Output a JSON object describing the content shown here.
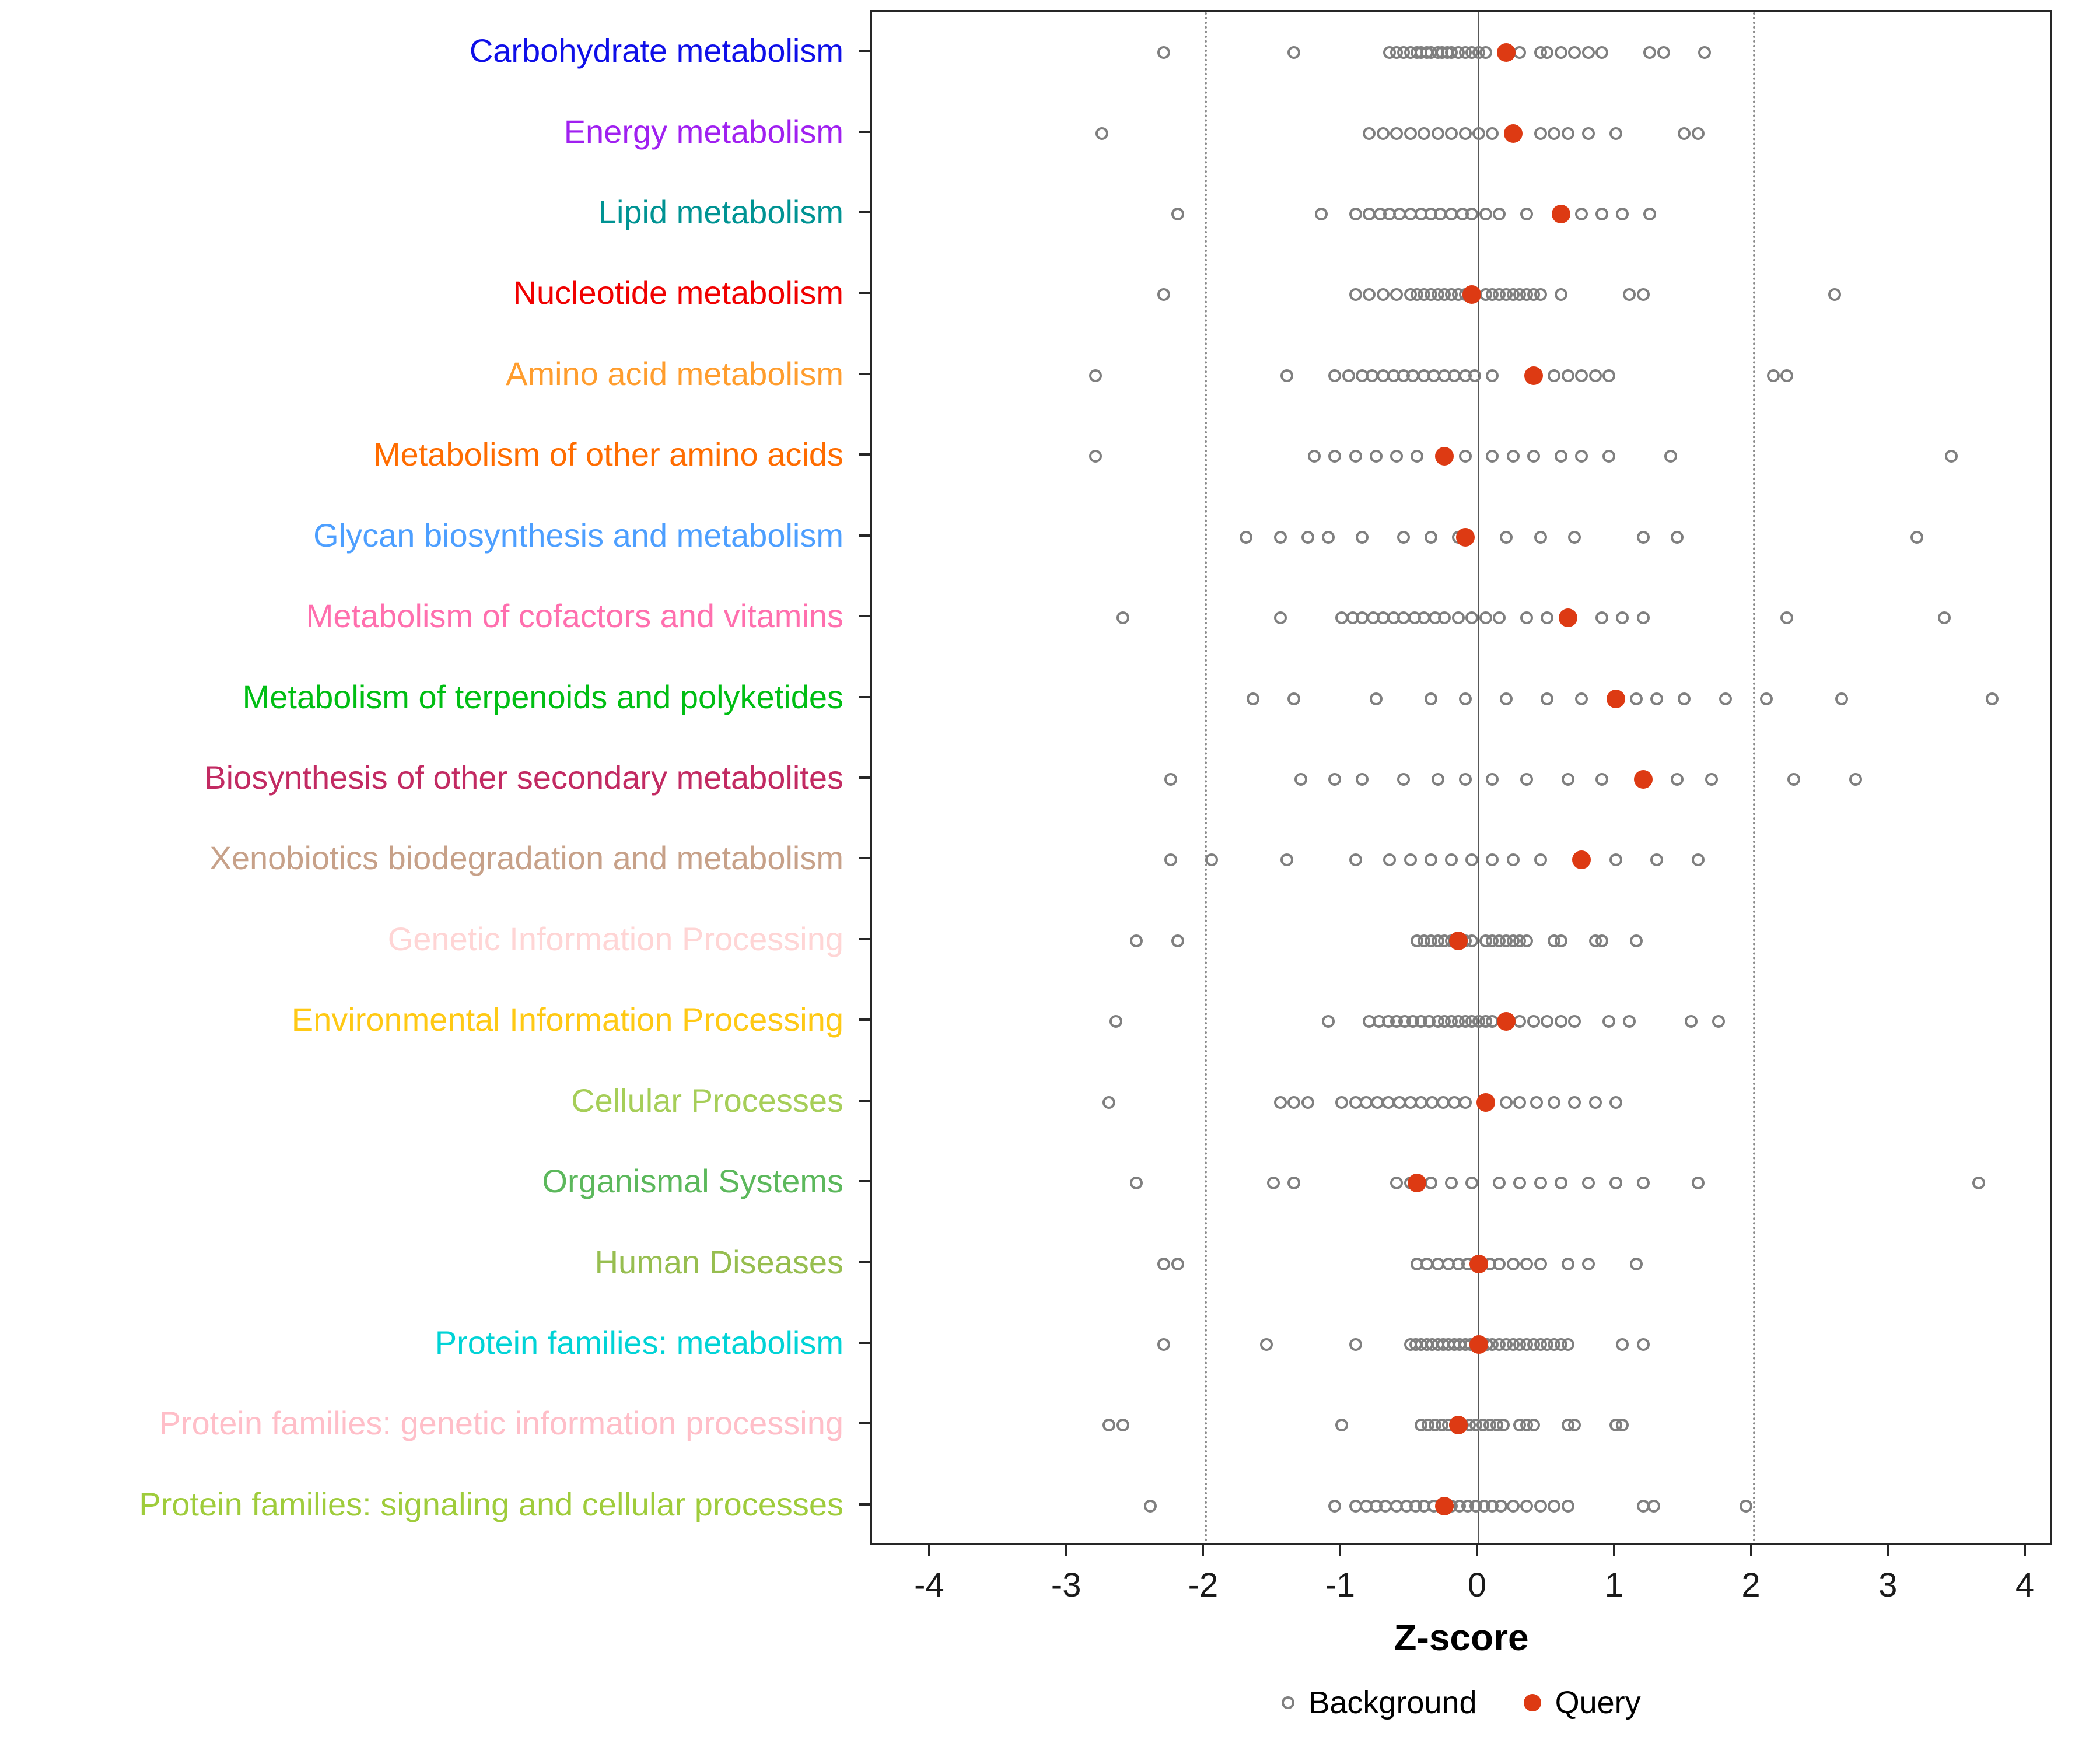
{
  "chart_data": {
    "type": "scatter",
    "title": "",
    "xlabel": "Z-score",
    "xlim": [
      -4.43,
      4.2
    ],
    "xticks": [
      -4,
      -3,
      -2,
      -1,
      0,
      1,
      2,
      3,
      4
    ],
    "grid": false,
    "legend_position": "bottom",
    "reference_lines": {
      "solid": [
        0
      ],
      "dotted": [
        -2,
        2
      ]
    },
    "legend": {
      "background_label": "Background",
      "query_label": "Query"
    },
    "colors": {
      "query_dot": "#DD3A13",
      "background_stroke": "#7F7F7F",
      "zero_line": "#595959",
      "dotted_line": "#8C8C8C"
    },
    "categories": [
      {
        "label": "Carbohydrate metabolism",
        "color": "#0F0FE8",
        "query": 0.2,
        "background": [
          -2.3,
          -1.35,
          -0.65,
          -0.6,
          -0.55,
          -0.5,
          -0.45,
          -0.42,
          -0.38,
          -0.35,
          -0.3,
          -0.27,
          -0.23,
          -0.2,
          -0.15,
          -0.1,
          -0.05,
          0,
          0.05,
          0.3,
          0.45,
          0.5,
          0.6,
          0.7,
          0.8,
          0.9,
          1.25,
          1.35,
          1.65
        ]
      },
      {
        "label": "Energy metabolism",
        "color": "#A020F0",
        "query": 0.25,
        "background": [
          -2.75,
          -0.8,
          -0.7,
          -0.6,
          -0.5,
          -0.4,
          -0.3,
          -0.2,
          -0.1,
          0,
          0.1,
          0.45,
          0.55,
          0.65,
          0.8,
          1.0,
          1.5,
          1.6
        ]
      },
      {
        "label": "Lipid metabolism",
        "color": "#009393",
        "query": 0.6,
        "background": [
          -2.2,
          -1.15,
          -0.9,
          -0.8,
          -0.72,
          -0.65,
          -0.58,
          -0.5,
          -0.42,
          -0.35,
          -0.28,
          -0.2,
          -0.12,
          -0.05,
          0.05,
          0.15,
          0.35,
          0.75,
          0.9,
          1.05,
          1.25
        ]
      },
      {
        "label": "Nucleotide metabolism",
        "color": "#F00000",
        "query": -0.05,
        "background": [
          -2.3,
          -0.9,
          -0.8,
          -0.7,
          -0.6,
          -0.5,
          -0.45,
          -0.4,
          -0.35,
          -0.3,
          -0.25,
          -0.2,
          -0.15,
          -0.1,
          0.05,
          0.1,
          0.15,
          0.2,
          0.25,
          0.3,
          0.35,
          0.4,
          0.45,
          0.6,
          1.1,
          1.2,
          2.6
        ]
      },
      {
        "label": "Amino acid metabolism",
        "color": "#FF9D2E",
        "query": 0.4,
        "background": [
          -2.8,
          -1.4,
          -1.05,
          -0.95,
          -0.85,
          -0.78,
          -0.7,
          -0.62,
          -0.55,
          -0.48,
          -0.4,
          -0.33,
          -0.25,
          -0.18,
          -0.1,
          -0.03,
          0.1,
          0.55,
          0.65,
          0.75,
          0.85,
          0.95,
          2.15,
          2.25
        ]
      },
      {
        "label": "Metabolism of other amino acids",
        "color": "#FF6C00",
        "query": -0.25,
        "background": [
          -2.8,
          -1.2,
          -1.05,
          -0.9,
          -0.75,
          -0.6,
          -0.45,
          -0.1,
          0.1,
          0.25,
          0.4,
          0.6,
          0.75,
          0.95,
          1.4,
          3.45
        ]
      },
      {
        "label": "Glycan biosynthesis and metabolism",
        "color": "#4D9FFF",
        "query": -0.1,
        "background": [
          -1.7,
          -1.45,
          -1.25,
          -1.1,
          -0.85,
          -0.55,
          -0.35,
          -0.15,
          0.2,
          0.45,
          0.7,
          1.2,
          1.45,
          3.2
        ]
      },
      {
        "label": "Metabolism of cofactors and vitamins",
        "color": "#FF6FAE",
        "query": 0.65,
        "background": [
          -2.6,
          -1.45,
          -1.0,
          -0.92,
          -0.85,
          -0.77,
          -0.7,
          -0.62,
          -0.55,
          -0.47,
          -0.4,
          -0.32,
          -0.25,
          -0.15,
          -0.05,
          0.05,
          0.15,
          0.35,
          0.5,
          0.9,
          1.05,
          1.2,
          2.25,
          3.4
        ]
      },
      {
        "label": "Metabolism of terpenoids and polyketides",
        "color": "#00BE13",
        "query": 1.0,
        "background": [
          -1.65,
          -1.35,
          -0.75,
          -0.35,
          -0.1,
          0.2,
          0.5,
          0.75,
          1.15,
          1.3,
          1.5,
          1.8,
          2.1,
          2.65,
          3.75
        ]
      },
      {
        "label": "Biosynthesis of other secondary metabolites",
        "color": "#C22A62",
        "query": 1.2,
        "background": [
          -2.25,
          -1.3,
          -1.05,
          -0.85,
          -0.55,
          -0.3,
          -0.1,
          0.1,
          0.35,
          0.65,
          0.9,
          1.45,
          1.7,
          2.3,
          2.75
        ]
      },
      {
        "label": "Xenobiotics biodegradation and metabolism",
        "color": "#C7A189",
        "query": 0.75,
        "background": [
          -2.25,
          -1.95,
          -1.4,
          -0.9,
          -0.65,
          -0.5,
          -0.35,
          -0.2,
          -0.05,
          0.1,
          0.25,
          0.45,
          1.0,
          1.3,
          1.6
        ]
      },
      {
        "label": "Genetic Information Processing",
        "color": "#FFD5D5",
        "query": -0.15,
        "background": [
          -2.5,
          -2.2,
          -0.45,
          -0.4,
          -0.35,
          -0.3,
          -0.25,
          -0.2,
          -0.15,
          -0.1,
          -0.05,
          0.05,
          0.1,
          0.15,
          0.2,
          0.25,
          0.3,
          0.35,
          0.55,
          0.6,
          0.85,
          0.9,
          1.15
        ]
      },
      {
        "label": "Environmental Information Processing",
        "color": "#FFC914",
        "query": 0.2,
        "background": [
          -2.65,
          -1.1,
          -0.8,
          -0.73,
          -0.66,
          -0.6,
          -0.54,
          -0.48,
          -0.42,
          -0.36,
          -0.3,
          -0.25,
          -0.2,
          -0.15,
          -0.1,
          -0.05,
          0,
          0.05,
          0.1,
          0.3,
          0.4,
          0.5,
          0.6,
          0.7,
          0.95,
          1.1,
          1.55,
          1.75
        ]
      },
      {
        "label": "Cellular Processes",
        "color": "#A6CE58",
        "query": 0.05,
        "background": [
          -2.7,
          -1.45,
          -1.35,
          -1.25,
          -1.0,
          -0.9,
          -0.82,
          -0.74,
          -0.66,
          -0.58,
          -0.5,
          -0.42,
          -0.34,
          -0.26,
          -0.18,
          -0.1,
          0.2,
          0.3,
          0.42,
          0.55,
          0.7,
          0.85,
          1.0
        ]
      },
      {
        "label": "Organismal Systems",
        "color": "#5CB85C",
        "query": -0.45,
        "background": [
          -2.5,
          -1.5,
          -1.35,
          -0.6,
          -0.5,
          -0.35,
          -0.2,
          -0.05,
          0.15,
          0.3,
          0.45,
          0.6,
          0.8,
          1.0,
          1.2,
          1.6,
          3.65
        ]
      },
      {
        "label": "Human Diseases",
        "color": "#97BE50",
        "query": 0.0,
        "background": [
          -2.3,
          -2.2,
          -0.45,
          -0.38,
          -0.3,
          -0.22,
          -0.15,
          -0.08,
          0,
          0.08,
          0.15,
          0.25,
          0.35,
          0.45,
          0.65,
          0.8,
          1.15
        ]
      },
      {
        "label": "Protein families: metabolism",
        "color": "#00D3D6",
        "query": 0.0,
        "background": [
          -2.3,
          -1.55,
          -0.9,
          -0.5,
          -0.46,
          -0.42,
          -0.38,
          -0.34,
          -0.3,
          -0.26,
          -0.22,
          -0.18,
          -0.14,
          -0.1,
          -0.06,
          -0.02,
          0.02,
          0.06,
          0.1,
          0.15,
          0.2,
          0.25,
          0.3,
          0.35,
          0.4,
          0.45,
          0.5,
          0.55,
          0.6,
          0.65,
          1.05,
          1.2
        ]
      },
      {
        "label": "Protein families: genetic information processing",
        "color": "#FFBEC8",
        "query": -0.15,
        "background": [
          -2.7,
          -2.6,
          -1.0,
          -0.42,
          -0.37,
          -0.32,
          -0.27,
          -0.22,
          -0.17,
          -0.12,
          -0.07,
          -0.02,
          0.03,
          0.08,
          0.13,
          0.18,
          0.3,
          0.35,
          0.4,
          0.65,
          0.7,
          1.0,
          1.05
        ]
      },
      {
        "label": "Protein families: signaling and cellular processes",
        "color": "#9FCC3B",
        "query": -0.25,
        "background": [
          -2.4,
          -1.05,
          -0.9,
          -0.82,
          -0.75,
          -0.68,
          -0.6,
          -0.53,
          -0.46,
          -0.4,
          -0.33,
          -0.26,
          -0.2,
          -0.14,
          -0.08,
          -0.02,
          0.04,
          0.1,
          0.16,
          0.25,
          0.35,
          0.45,
          0.55,
          0.65,
          1.2,
          1.28,
          1.95
        ]
      }
    ]
  }
}
